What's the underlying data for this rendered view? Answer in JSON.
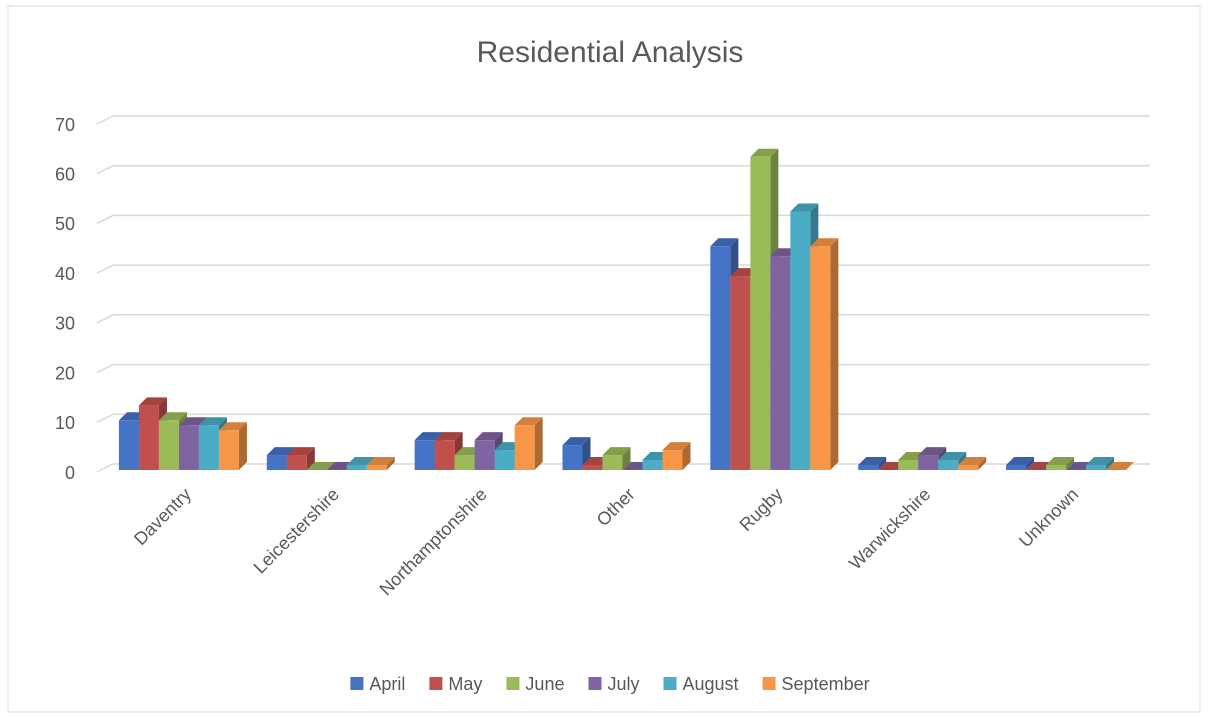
{
  "chart_data": {
    "type": "bar",
    "title": "Residential Analysis",
    "categories": [
      "Daventry",
      "Leicestershire",
      "Northamptonshire",
      "Other",
      "Rugby",
      "Warwickshire",
      "Unknown"
    ],
    "series": [
      {
        "name": "April",
        "color": "#4472c4",
        "values": [
          10,
          3,
          6,
          5,
          45,
          1,
          1
        ]
      },
      {
        "name": "May",
        "color": "#c0504d",
        "values": [
          13,
          3,
          6,
          1,
          39,
          0,
          0
        ]
      },
      {
        "name": "June",
        "color": "#9bbb59",
        "values": [
          10,
          0,
          3,
          3,
          63,
          2,
          1
        ]
      },
      {
        "name": "July",
        "color": "#8064a2",
        "values": [
          9,
          0,
          6,
          0,
          43,
          3,
          0
        ]
      },
      {
        "name": "August",
        "color": "#4bacc6",
        "values": [
          9,
          1,
          4,
          2,
          52,
          2,
          1
        ]
      },
      {
        "name": "September",
        "color": "#f79646",
        "values": [
          8,
          1,
          9,
          4,
          45,
          1,
          0
        ]
      }
    ],
    "ylim": [
      0,
      70
    ],
    "yticks": [
      0,
      10,
      20,
      30,
      40,
      50,
      60,
      70
    ],
    "grid": true,
    "legend": "bottom"
  }
}
